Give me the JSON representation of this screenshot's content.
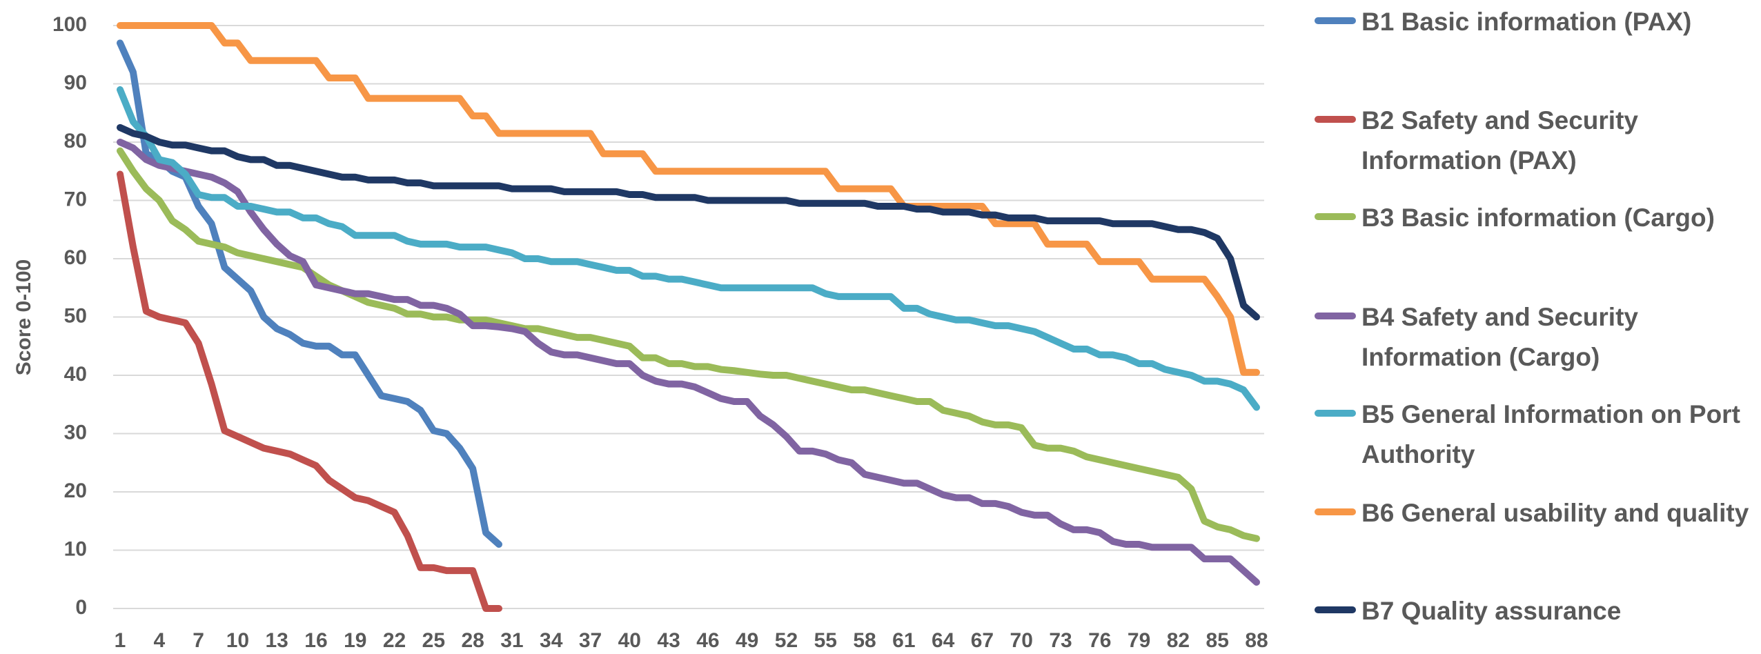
{
  "chart_data": {
    "type": "line",
    "ylabel": "Score 0-100",
    "x": [
      1,
      2,
      3,
      4,
      5,
      6,
      7,
      8,
      9,
      10,
      11,
      12,
      13,
      14,
      15,
      16,
      17,
      18,
      19,
      20,
      21,
      22,
      23,
      24,
      25,
      26,
      27,
      28,
      29,
      30,
      31,
      32,
      33,
      34,
      35,
      36,
      37,
      38,
      39,
      40,
      41,
      42,
      43,
      44,
      45,
      46,
      47,
      48,
      49,
      50,
      51,
      52,
      53,
      54,
      55,
      56,
      57,
      58,
      59,
      60,
      61,
      62,
      63,
      64,
      65,
      66,
      67,
      68,
      69,
      70,
      71,
      72,
      73,
      74,
      75,
      76,
      77,
      78,
      79,
      80,
      81,
      82,
      83,
      84,
      85,
      86,
      87,
      88
    ],
    "xlim": [
      1,
      88
    ],
    "xticks": [
      1,
      4,
      7,
      10,
      13,
      16,
      19,
      22,
      25,
      28,
      31,
      34,
      37,
      40,
      43,
      46,
      49,
      52,
      55,
      58,
      61,
      64,
      67,
      70,
      73,
      76,
      79,
      82,
      85,
      88
    ],
    "ylim": [
      0,
      100
    ],
    "yticks": [
      0,
      10,
      20,
      30,
      40,
      50,
      60,
      70,
      80,
      90,
      100
    ],
    "grid": true,
    "legend": "right",
    "series": [
      {
        "name": "B1 Basic information (PAX)",
        "color": "#4f81bd",
        "values": [
          97,
          92,
          78,
          77,
          75,
          74,
          69,
          66,
          58.5,
          56.5,
          54.5,
          50,
          48,
          47,
          45.5,
          45,
          45,
          43.5,
          43.5,
          40,
          36.5,
          36,
          35.5,
          34,
          30.5,
          30,
          27.5,
          24,
          13,
          11,
          null,
          null,
          null,
          null,
          null,
          null,
          null,
          null,
          null,
          null,
          null,
          null,
          null,
          null,
          null,
          null,
          null,
          null,
          null,
          null,
          null,
          null,
          null,
          null,
          null,
          null,
          null,
          null,
          null,
          null,
          null,
          null,
          null,
          null,
          null,
          null,
          null,
          null,
          null,
          null,
          null,
          null,
          null,
          null,
          null,
          null,
          null,
          null,
          null,
          null,
          null,
          null,
          null,
          null,
          null,
          null,
          null,
          null
        ]
      },
      {
        "name": "B2 Safety and Security Information (PAX)",
        "color": "#c0504d",
        "values": [
          74.5,
          62,
          51,
          50,
          49.5,
          49,
          45.5,
          38.5,
          30.5,
          29.5,
          28.5,
          27.5,
          27,
          26.5,
          25.5,
          24.5,
          22,
          20.5,
          19,
          18.5,
          17.5,
          16.5,
          12.5,
          7,
          7,
          6.5,
          6.5,
          6.5,
          0,
          0,
          null,
          null,
          null,
          null,
          null,
          null,
          null,
          null,
          null,
          null,
          null,
          null,
          null,
          null,
          null,
          null,
          null,
          null,
          null,
          null,
          null,
          null,
          null,
          null,
          null,
          null,
          null,
          null,
          null,
          null,
          null,
          null,
          null,
          null,
          null,
          null,
          null,
          null,
          null,
          null,
          null,
          null,
          null,
          null,
          null,
          null,
          null,
          null,
          null,
          null,
          null,
          null,
          null,
          null,
          null,
          null,
          null,
          null
        ]
      },
      {
        "name": "B3 Basic information (Cargo)",
        "color": "#9bbb59",
        "values": [
          78.5,
          75,
          72,
          70,
          66.5,
          65,
          63,
          62.5,
          62,
          61,
          60.5,
          60,
          59.5,
          59,
          58.5,
          57,
          55.5,
          54.5,
          53.5,
          52.5,
          52,
          51.5,
          50.5,
          50.5,
          50,
          50,
          49.5,
          49.5,
          49.5,
          49,
          48.5,
          48,
          48,
          47.5,
          47,
          46.5,
          46.5,
          46,
          45.5,
          45,
          43,
          43,
          42,
          42,
          41.5,
          41.5,
          41,
          40.8,
          40.5,
          40.2,
          40,
          40,
          39.5,
          39,
          38.5,
          38,
          37.5,
          37.5,
          37,
          36.5,
          36,
          35.5,
          35.5,
          34,
          33.5,
          33,
          32,
          31.5,
          31.5,
          31,
          28,
          27.5,
          27.5,
          27,
          26,
          25.5,
          25,
          24.5,
          24,
          23.5,
          23,
          22.5,
          20.5,
          15,
          14,
          13.5,
          12.5,
          12
        ]
      },
      {
        "name": "B4 Safety and Security Information (Cargo)",
        "color": "#8064a2",
        "values": [
          80,
          79,
          77,
          76,
          75.5,
          75,
          74.5,
          74,
          73,
          71.5,
          68,
          65,
          62.5,
          60.5,
          59.5,
          55.5,
          55,
          54.5,
          54,
          54,
          53.5,
          53,
          53,
          52,
          52,
          51.5,
          50.5,
          48.5,
          48.5,
          48.3,
          48,
          47.5,
          45.5,
          44,
          43.5,
          43.5,
          43,
          42.5,
          42,
          42,
          40,
          39,
          38.5,
          38.5,
          38,
          37,
          36,
          35.5,
          35.5,
          33,
          31.5,
          29.5,
          27,
          27,
          26.5,
          25.5,
          25,
          23,
          22.5,
          22,
          21.5,
          21.5,
          20.5,
          19.5,
          19,
          19,
          18,
          18,
          17.5,
          16.5,
          16,
          16,
          14.5,
          13.5,
          13.5,
          13,
          11.5,
          11,
          11,
          10.5,
          10.5,
          10.5,
          10.5,
          8.5,
          8.5,
          8.5,
          6.5,
          4.5
        ]
      },
      {
        "name": "B5 General Information on Port Authority",
        "color": "#4bacc6",
        "values": [
          89,
          83.5,
          81,
          77,
          76.5,
          74.5,
          71,
          70.5,
          70.5,
          69,
          69,
          68.5,
          68,
          68,
          67,
          67,
          66,
          65.5,
          64,
          64,
          64,
          64,
          63,
          62.5,
          62.5,
          62.5,
          62,
          62,
          62,
          61.5,
          61,
          60,
          60,
          59.5,
          59.5,
          59.5,
          59,
          58.5,
          58,
          58,
          57,
          57,
          56.5,
          56.5,
          56,
          55.5,
          55,
          55,
          55,
          55,
          55,
          55,
          55,
          55,
          54,
          53.5,
          53.5,
          53.5,
          53.5,
          53.5,
          51.5,
          51.5,
          50.5,
          50,
          49.5,
          49.5,
          49,
          48.5,
          48.5,
          48,
          47.5,
          46.5,
          45.5,
          44.5,
          44.5,
          43.5,
          43.5,
          43,
          42,
          42,
          41,
          40.5,
          40,
          39,
          39,
          38.5,
          37.5,
          34.5
        ]
      },
      {
        "name": "B6 General usability and quality",
        "color": "#f79646",
        "values": [
          100,
          100,
          100,
          100,
          100,
          100,
          100,
          100,
          97,
          97,
          94,
          94,
          94,
          94,
          94,
          94,
          91,
          91,
          91,
          87.5,
          87.5,
          87.5,
          87.5,
          87.5,
          87.5,
          87.5,
          87.5,
          84.5,
          84.5,
          81.5,
          81.5,
          81.5,
          81.5,
          81.5,
          81.5,
          81.5,
          81.5,
          78,
          78,
          78,
          78,
          75,
          75,
          75,
          75,
          75,
          75,
          75,
          75,
          75,
          75,
          75,
          75,
          75,
          75,
          72,
          72,
          72,
          72,
          72,
          69,
          69,
          69,
          69,
          69,
          69,
          69,
          66,
          66,
          66,
          66,
          62.5,
          62.5,
          62.5,
          62.5,
          59.5,
          59.5,
          59.5,
          59.5,
          56.5,
          56.5,
          56.5,
          56.5,
          56.5,
          53.5,
          50,
          40.5,
          40.5
        ]
      },
      {
        "name": "B7 Quality assurance",
        "color": "#1f3864",
        "values": [
          82.5,
          81.5,
          81,
          80,
          79.5,
          79.5,
          79,
          78.5,
          78.5,
          77.5,
          77,
          77,
          76,
          76,
          75.5,
          75,
          74.5,
          74,
          74,
          73.5,
          73.5,
          73.5,
          73,
          73,
          72.5,
          72.5,
          72.5,
          72.5,
          72.5,
          72.5,
          72,
          72,
          72,
          72,
          71.5,
          71.5,
          71.5,
          71.5,
          71.5,
          71,
          71,
          70.5,
          70.5,
          70.5,
          70.5,
          70,
          70,
          70,
          70,
          70,
          70,
          70,
          69.5,
          69.5,
          69.5,
          69.5,
          69.5,
          69.5,
          69,
          69,
          69,
          68.5,
          68.5,
          68,
          68,
          68,
          67.5,
          67.5,
          67,
          67,
          67,
          66.5,
          66.5,
          66.5,
          66.5,
          66.5,
          66,
          66,
          66,
          66,
          65.5,
          65,
          65,
          64.5,
          63.5,
          60,
          52,
          50
        ]
      }
    ]
  }
}
